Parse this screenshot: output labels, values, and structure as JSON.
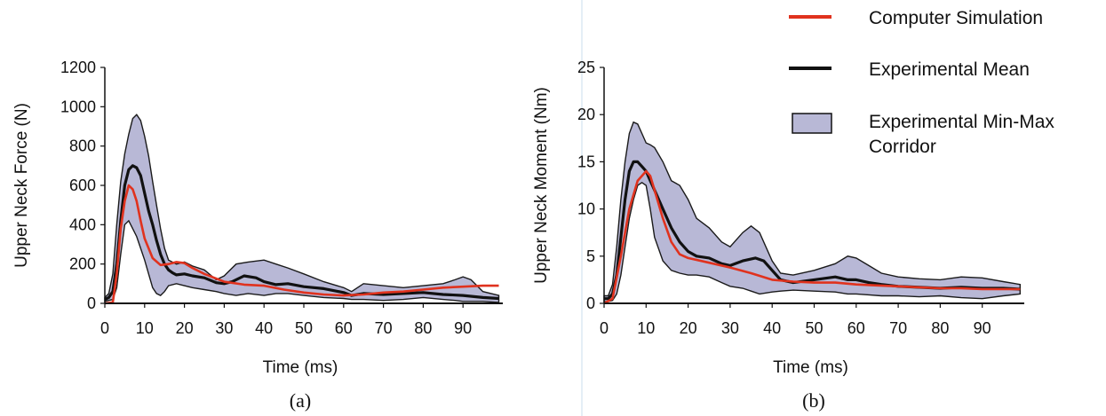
{
  "chart_data": [
    {
      "type": "line",
      "caption": "(a)",
      "xlabel": "Time (ms)",
      "ylabel": "Upper Neck Force (N)",
      "xlim": [
        0,
        100
      ],
      "ylim": [
        0,
        1200
      ],
      "xticks": [
        0,
        10,
        20,
        30,
        40,
        50,
        60,
        70,
        80,
        90
      ],
      "yticks": [
        0,
        200,
        400,
        600,
        800,
        1000,
        1200
      ],
      "grid": false,
      "series": [
        {
          "name": "Computer Simulation",
          "color": "#e0321e",
          "x": [
            0,
            2,
            3,
            4,
            5,
            6,
            7,
            8,
            9,
            10,
            12,
            14,
            16,
            18,
            20,
            22,
            25,
            30,
            35,
            40,
            45,
            50,
            55,
            60,
            65,
            70,
            75,
            80,
            85,
            90,
            95,
            99
          ],
          "y": [
            0,
            5,
            150,
            380,
            520,
            600,
            580,
            520,
            420,
            330,
            230,
            195,
            200,
            210,
            205,
            180,
            150,
            110,
            95,
            90,
            70,
            55,
            45,
            40,
            45,
            55,
            60,
            70,
            80,
            85,
            90,
            90
          ]
        },
        {
          "name": "Experimental Mean",
          "color": "#111111",
          "x": [
            0,
            1,
            2,
            3,
            4,
            5,
            6,
            7,
            8,
            9,
            10,
            11,
            12,
            13,
            14,
            15,
            16,
            17,
            18,
            20,
            22,
            25,
            28,
            30,
            32,
            35,
            38,
            40,
            43,
            46,
            50,
            55,
            60,
            62,
            65,
            70,
            75,
            80,
            85,
            90,
            95,
            99
          ],
          "y": [
            20,
            30,
            60,
            200,
            420,
            600,
            680,
            700,
            690,
            650,
            560,
            470,
            400,
            320,
            250,
            200,
            170,
            155,
            145,
            150,
            140,
            130,
            105,
            100,
            110,
            140,
            130,
            110,
            95,
            100,
            85,
            75,
            55,
            40,
            50,
            45,
            50,
            55,
            45,
            40,
            30,
            25
          ]
        }
      ],
      "band": {
        "name": "Experimental Min-Max Corridor",
        "color": "#b8b8d6",
        "x": [
          0,
          1,
          2,
          3,
          4,
          5,
          6,
          7,
          8,
          9,
          10,
          11,
          12,
          13,
          14,
          15,
          16,
          18,
          20,
          22,
          25,
          28,
          30,
          33,
          36,
          40,
          43,
          46,
          50,
          55,
          60,
          62,
          65,
          70,
          75,
          80,
          85,
          88,
          90,
          92,
          95,
          99
        ],
        "upper": [
          30,
          50,
          150,
          400,
          620,
          760,
          860,
          940,
          960,
          930,
          850,
          750,
          620,
          500,
          380,
          280,
          220,
          200,
          210,
          190,
          170,
          120,
          140,
          200,
          210,
          220,
          200,
          180,
          150,
          110,
          80,
          60,
          100,
          90,
          80,
          90,
          100,
          120,
          135,
          120,
          60,
          40
        ],
        "lower": [
          10,
          15,
          20,
          80,
          250,
          400,
          420,
          380,
          340,
          280,
          220,
          150,
          80,
          50,
          40,
          60,
          90,
          100,
          90,
          80,
          70,
          60,
          50,
          40,
          50,
          40,
          50,
          50,
          40,
          30,
          25,
          20,
          20,
          15,
          20,
          30,
          20,
          15,
          10,
          10,
          10,
          5
        ]
      }
    },
    {
      "type": "line",
      "caption": "(b)",
      "xlabel": "Time (ms)",
      "ylabel": "Upper Neck  Moment (Nm)",
      "xlim": [
        0,
        100
      ],
      "ylim": [
        0,
        25
      ],
      "xticks": [
        0,
        10,
        20,
        30,
        40,
        50,
        60,
        70,
        80,
        90
      ],
      "yticks": [
        0,
        5,
        10,
        15,
        20,
        25
      ],
      "grid": false,
      "series": [
        {
          "name": "Computer Simulation",
          "color": "#e0321e",
          "x": [
            0,
            2,
            4,
            6,
            8,
            10,
            11,
            12,
            14,
            16,
            18,
            20,
            25,
            30,
            35,
            40,
            45,
            50,
            55,
            60,
            65,
            70,
            75,
            80,
            85,
            90,
            95,
            99
          ],
          "y": [
            0,
            0.5,
            5,
            10,
            13,
            14,
            13.5,
            12,
            9,
            6.5,
            5.2,
            4.8,
            4.3,
            3.8,
            3.2,
            2.5,
            2.3,
            2.2,
            2.2,
            2.0,
            1.9,
            1.8,
            1.7,
            1.6,
            1.6,
            1.5,
            1.5,
            1.5
          ]
        },
        {
          "name": "Experimental Mean",
          "color": "#111111",
          "x": [
            0,
            1,
            2,
            3,
            4,
            5,
            6,
            7,
            8,
            9,
            10,
            11,
            12,
            14,
            16,
            18,
            20,
            22,
            25,
            28,
            30,
            33,
            36,
            38,
            40,
            42,
            45,
            50,
            55,
            58,
            60,
            63,
            66,
            70,
            75,
            80,
            85,
            90,
            95,
            99
          ],
          "y": [
            0.5,
            0.5,
            1,
            3,
            7,
            11,
            14,
            15,
            15,
            14.5,
            14,
            13,
            12,
            10,
            8,
            6.5,
            5.5,
            5,
            4.8,
            4.2,
            4.0,
            4.5,
            4.8,
            4.5,
            3.5,
            2.5,
            2.2,
            2.5,
            2.8,
            2.5,
            2.5,
            2.2,
            2.0,
            1.8,
            1.7,
            1.6,
            1.7,
            1.6,
            1.6,
            1.5
          ]
        }
      ],
      "band": {
        "name": "Experimental Min-Max Corridor",
        "color": "#b8b8d6",
        "x": [
          0,
          1,
          2,
          3,
          4,
          5,
          6,
          7,
          8,
          9,
          10,
          11,
          12,
          14,
          16,
          18,
          20,
          22,
          25,
          28,
          30,
          33,
          35,
          37,
          40,
          42,
          45,
          50,
          55,
          58,
          60,
          63,
          66,
          70,
          75,
          80,
          85,
          90,
          95,
          99
        ],
        "upper": [
          0.8,
          0.8,
          2,
          6,
          11,
          15,
          18,
          19.2,
          19,
          18,
          17,
          16.8,
          16.5,
          15,
          13,
          12.5,
          11,
          9,
          8,
          6.5,
          6.0,
          7.5,
          8.2,
          7.5,
          4.5,
          3.2,
          3.0,
          3.5,
          4.2,
          5.0,
          4.8,
          4.0,
          3.2,
          2.8,
          2.6,
          2.5,
          2.8,
          2.7,
          2.3,
          2.0
        ],
        "lower": [
          0.2,
          0.2,
          0.3,
          1,
          3,
          6,
          9,
          11,
          12.5,
          12.8,
          12.5,
          10,
          7,
          4.5,
          3.5,
          3.2,
          3.0,
          3.0,
          2.8,
          2.2,
          1.8,
          1.6,
          1.3,
          1.0,
          1.2,
          1.3,
          1.4,
          1.3,
          1.2,
          1.0,
          1.0,
          0.9,
          0.8,
          0.8,
          0.7,
          0.8,
          0.6,
          0.5,
          0.8,
          1.0
        ]
      }
    }
  ],
  "legend": {
    "items": [
      {
        "label_lines": [
          "Computer Simulation"
        ],
        "kind": "line",
        "color": "#e0321e"
      },
      {
        "label_lines": [
          "Experimental Mean"
        ],
        "kind": "line",
        "color": "#111111"
      },
      {
        "label_lines": [
          "Experimental Min-Max",
          "Corridor"
        ],
        "kind": "patch",
        "color": "#b8b8d6"
      }
    ]
  }
}
